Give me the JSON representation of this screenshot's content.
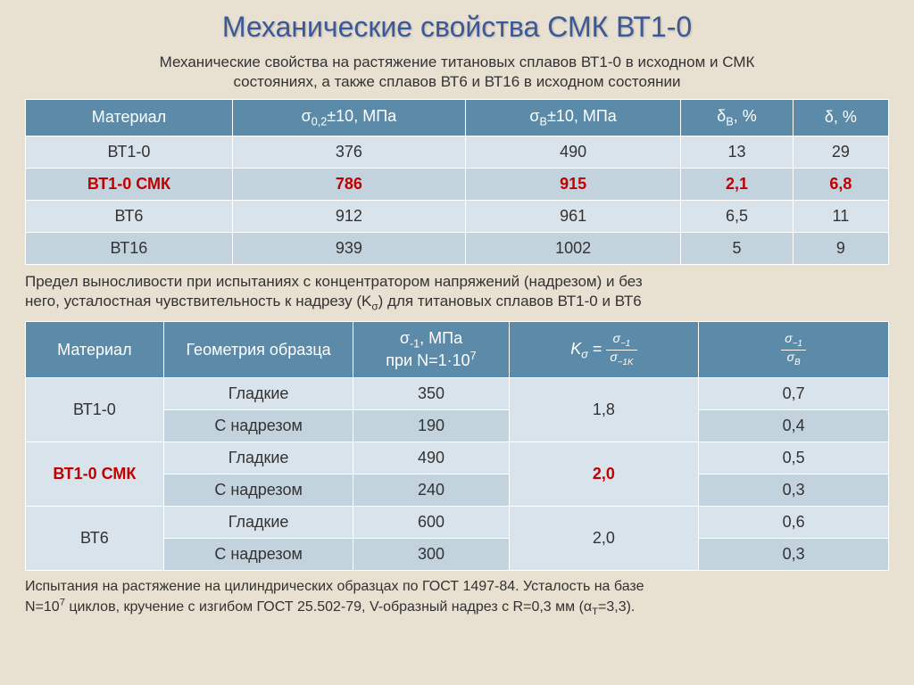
{
  "title": "Механические свойства СМК ВТ1-0",
  "caption1_line1": "Механические свойства на растяжение титановых сплавов ВТ1-0 в исходном и СМК",
  "caption1_line2": "состояниях, а также сплавов ВТ6 и ВТ16 в исходном состоянии",
  "table1": {
    "headers": {
      "h1": "Материал",
      "h2": "σ<sub>0,2</sub>±10, МПа",
      "h3": "σ<sub>В</sub>±10, МПа",
      "h4": "δ<sub>В</sub>, %",
      "h5": "δ, %"
    },
    "rows": [
      {
        "material": "ВТ1-0",
        "c1": "376",
        "c2": "490",
        "c3": "13",
        "c4": "29",
        "red": false,
        "stripe": "light"
      },
      {
        "material": "ВТ1-0 СМК",
        "c1": "786",
        "c2": "915",
        "c3": "2,1",
        "c4": "6,8",
        "red": true,
        "stripe": "dark"
      },
      {
        "material": "ВТ6",
        "c1": "912",
        "c2": "961",
        "c3": "6,5",
        "c4": "11",
        "red": false,
        "stripe": "light"
      },
      {
        "material": "ВТ16",
        "c1": "939",
        "c2": "1002",
        "c3": "5",
        "c4": "9",
        "red": false,
        "stripe": "dark"
      }
    ]
  },
  "caption2_line1": "Предел выносливости при испытаниях с концентратором напряжений (надрезом) и без",
  "caption2_line2": "него, усталостная чувствительность к надрезу (K<sub>σ</sub>) для титановых сплавов ВТ1-0 и ВТ6",
  "table2": {
    "headers": {
      "h1": "Материал",
      "h2": "Геометрия образца",
      "h3": "σ<sub>-1</sub>, МПа<br>при N=1·10<sup>7</sup>"
    },
    "rows": [
      {
        "material": "ВТ1-0",
        "geom1": "Гладкие",
        "v1": "350",
        "geom2": "С надрезом",
        "v2": "190",
        "k": "1,8",
        "r1": "0,7",
        "r2": "0,4",
        "red": false
      },
      {
        "material": "ВТ1-0  СМК",
        "geom1": "Гладкие",
        "v1": "490",
        "geom2": "С надрезом",
        "v2": "240",
        "k": "2,0",
        "r1": "0,5",
        "r2": "0,3",
        "red": true
      },
      {
        "material": "ВТ6",
        "geom1": "Гладкие",
        "v1": "600",
        "geom2": "С надрезом",
        "v2": "300",
        "k": "2,0",
        "r1": "0,6",
        "r2": "0,3",
        "red": false
      }
    ]
  },
  "footnote_line1": "Испытания на растяжение на цилиндрических образцах по ГОСТ 1497-84. Усталость на базе",
  "footnote_line2": "N=10<sup>7</sup> циклов, кручение с изгибом ГОСТ 25.502-79, V-образный надрез с R=0,3 мм (α<sub>T</sub>=3,3).",
  "colors": {
    "background": "#e8e0d0",
    "header_bg": "#5b8ba8",
    "row_light": "#d9e3eb",
    "row_dark": "#c2d3de",
    "title_color": "#3b5998",
    "highlight_red": "#c00000"
  }
}
